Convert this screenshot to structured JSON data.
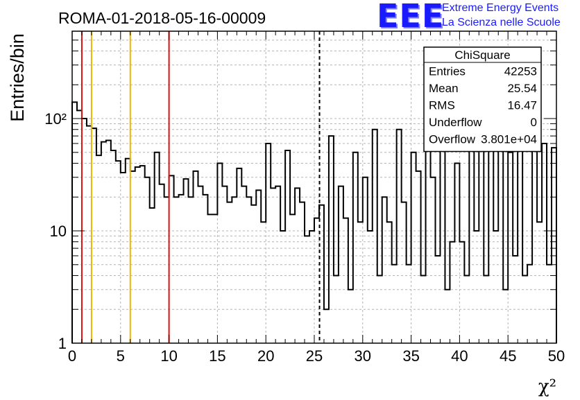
{
  "header": {
    "run_title": "ROMA-01-2018-05-16-00009",
    "logo_text": "EEE",
    "logo_line1": "Extreme Energy Events",
    "logo_line2": "La Scienza nelle Scuole"
  },
  "stats_box": {
    "title": "ChiSquare",
    "rows": [
      {
        "label": "Entries",
        "value": "42253"
      },
      {
        "label": "Mean",
        "value": "25.54"
      },
      {
        "label": "RMS",
        "value": "16.47"
      },
      {
        "label": "Underflow",
        "value": "0"
      },
      {
        "label": "Overflow",
        "value": "3.801e+04"
      }
    ]
  },
  "colors": {
    "red_line": "#e01010",
    "yellow_line": "#f0b400",
    "histogram": "#000000",
    "grid": "#b4b4b4",
    "logo_blue": "#1a1aff"
  },
  "chart_data": {
    "type": "histogram",
    "ylabel": "Entries/bin",
    "xlabel": "χ²",
    "xlim": [
      0,
      50
    ],
    "ylim": [
      1,
      600
    ],
    "yscale": "log",
    "grid": true,
    "bin_width": 0.5,
    "x_ticks": [
      "0",
      "5",
      "10",
      "15",
      "20",
      "25",
      "30",
      "35",
      "40",
      "45",
      "50"
    ],
    "y_ticks": [
      {
        "value": 1,
        "label": "1"
      },
      {
        "value": 10,
        "label": "10"
      },
      {
        "value": 100,
        "label": "10²"
      }
    ],
    "values": [
      140,
      118,
      100,
      86,
      82,
      47,
      62,
      64,
      52,
      42,
      33,
      44,
      34,
      37,
      38,
      30,
      16,
      50,
      26,
      20,
      31,
      20,
      21,
      29,
      20,
      34,
      25,
      21,
      14,
      14,
      40,
      25,
      18,
      20,
      36,
      25,
      20,
      17,
      23,
      12,
      60,
      24,
      25,
      10,
      52,
      14,
      24,
      18,
      9,
      10,
      13,
      17,
      2,
      70,
      4,
      25,
      13,
      3,
      50,
      12,
      30,
      10,
      80,
      4,
      20,
      12,
      5,
      80,
      18,
      5,
      50,
      34,
      4,
      140,
      30,
      6,
      70,
      3,
      8,
      40,
      8,
      4,
      70,
      10,
      80,
      4,
      70,
      10,
      80,
      3,
      50,
      6,
      60,
      4,
      5,
      70,
      12,
      60,
      5,
      55
    ],
    "vertical_lines": [
      {
        "x": 1,
        "color": "#e01010",
        "style": "solid"
      },
      {
        "x": 2,
        "color": "#f0b400",
        "style": "solid"
      },
      {
        "x": 6,
        "color": "#f0b400",
        "style": "solid"
      },
      {
        "x": 10,
        "color": "#e01010",
        "style": "solid"
      },
      {
        "x": 25.54,
        "color": "#000000",
        "style": "dashed"
      }
    ]
  }
}
